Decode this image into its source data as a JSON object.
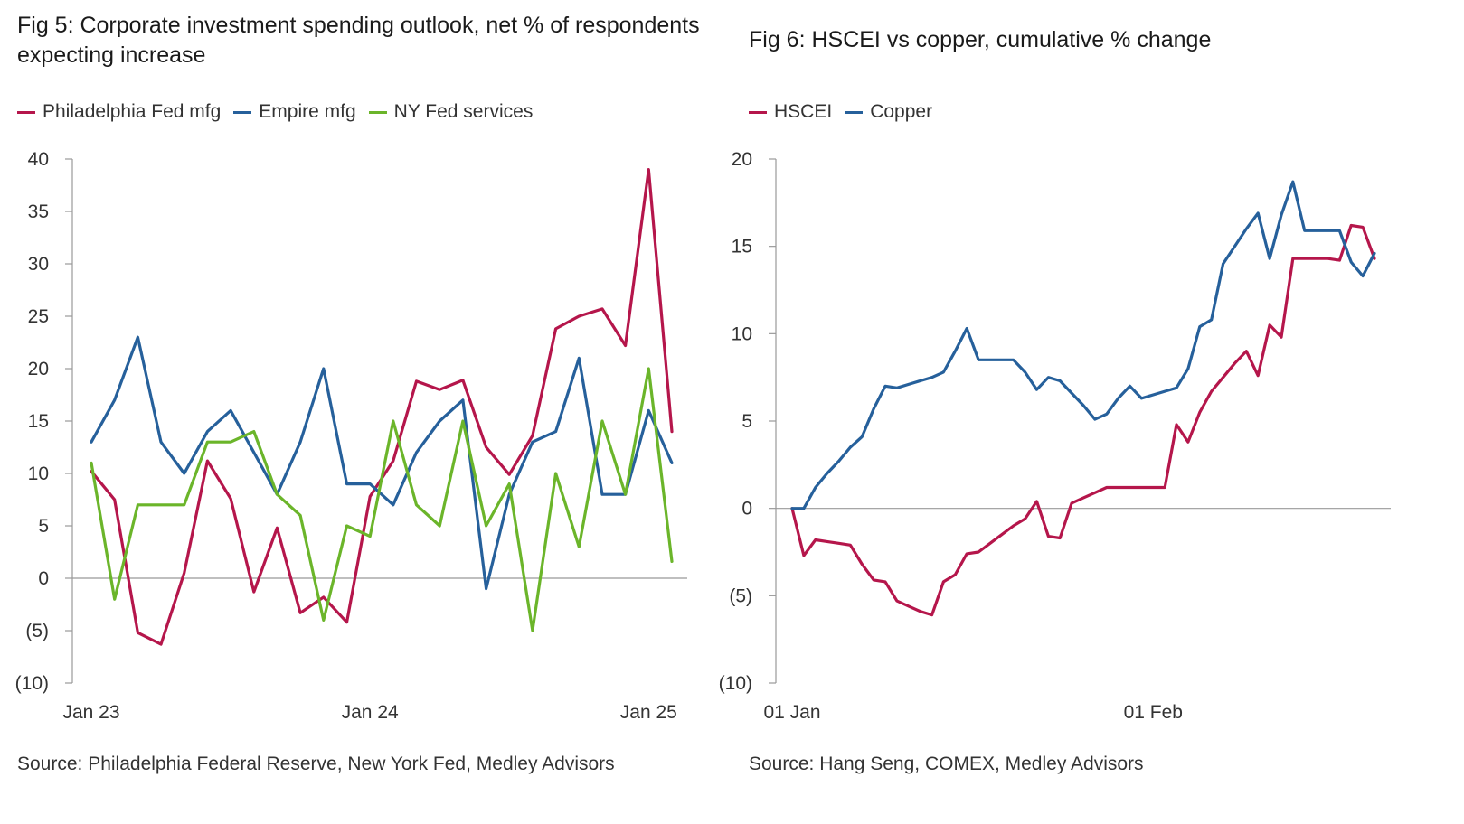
{
  "chart_data": [
    {
      "type": "line",
      "title": "Fig 5: Corporate investment spending outlook, net % of respondents expecting increase",
      "source": "Source: Philadelphia Federal Reserve, New York Fed, Medley Advisors",
      "xlabel": "",
      "ylabel": "",
      "ylim": [
        -10,
        40
      ],
      "yticks": [
        -10,
        -5,
        0,
        5,
        10,
        15,
        20,
        25,
        30,
        35,
        40
      ],
      "ytick_labels": [
        "(10)",
        "(5)",
        "0",
        "5",
        "10",
        "15",
        "20",
        "25",
        "30",
        "35",
        "40"
      ],
      "xlim": [
        0,
        25
      ],
      "xticks": [
        0,
        12,
        24
      ],
      "xtick_labels": [
        "Jan 23",
        "Jan 24",
        "Jan 25"
      ],
      "x": [
        0,
        1,
        2,
        3,
        4,
        5,
        6,
        7,
        8,
        9,
        10,
        11,
        12,
        13,
        14,
        15,
        16,
        17,
        18,
        19,
        20,
        21,
        22,
        23,
        24,
        25
      ],
      "series": [
        {
          "name": "Philadelphia Fed mfg",
          "color": "#b5164b",
          "values": [
            10.2,
            7.5,
            -5.2,
            -6.3,
            0.5,
            11.2,
            7.6,
            -1.3,
            4.8,
            -3.3,
            -1.8,
            -4.2,
            7.8,
            11.2,
            18.8,
            18,
            18.9,
            12.5,
            9.9,
            13.6,
            23.8,
            25,
            25.7,
            22.2,
            39,
            14
          ]
        },
        {
          "name": "Empire mfg",
          "color": "#26609b",
          "values": [
            13,
            17,
            23,
            13,
            10,
            14,
            16,
            12,
            8,
            13,
            20,
            9,
            9,
            7,
            12,
            15,
            17,
            -1,
            8,
            13,
            14,
            21,
            8,
            8,
            16,
            11
          ]
        },
        {
          "name": "NY Fed services",
          "color": "#6bb52a",
          "values": [
            11,
            -2,
            7,
            7,
            7,
            13,
            13,
            14,
            8,
            6,
            -4,
            5,
            4,
            15,
            7,
            5,
            15,
            5,
            9,
            -5,
            10,
            3,
            15,
            8,
            20,
            1.6
          ]
        }
      ]
    },
    {
      "type": "line",
      "title": "Fig 6: HSCEI vs copper, cumulative % change",
      "source": "Source: Hang Seng, COMEX, Medley Advisors",
      "xlabel": "",
      "ylabel": "",
      "ylim": [
        -10,
        20
      ],
      "yticks": [
        -10,
        -5,
        0,
        5,
        10,
        15,
        20
      ],
      "ytick_labels": [
        "(10)",
        "(5)",
        "0",
        "5",
        "10",
        "15",
        "20"
      ],
      "xlim": [
        0,
        50
      ],
      "xticks": [
        0,
        31
      ],
      "xtick_labels": [
        "01 Jan",
        "01 Feb"
      ],
      "x": [
        0,
        1,
        2,
        3,
        4,
        5,
        6,
        7,
        8,
        9,
        10,
        11,
        12,
        13,
        14,
        15,
        16,
        17,
        18,
        19,
        20,
        21,
        22,
        23,
        24,
        25,
        26,
        27,
        28,
        29,
        30,
        31,
        32,
        33,
        34,
        35,
        36,
        37,
        38,
        39,
        40,
        41,
        42,
        43,
        44,
        45,
        46,
        47,
        48,
        49,
        50
      ],
      "series": [
        {
          "name": "HSCEI",
          "color": "#b5164b",
          "values": [
            0,
            -2.7,
            -1.8,
            -1.9,
            -2.0,
            -2.1,
            -3.2,
            -4.1,
            -4.2,
            -5.3,
            -5.6,
            -5.9,
            -6.1,
            -4.2,
            -3.8,
            -2.6,
            -2.5,
            -2.0,
            -1.5,
            -1.0,
            -0.6,
            0.4,
            -1.6,
            -1.7,
            0.3,
            0.6,
            0.9,
            1.2,
            1.2,
            1.2,
            1.2,
            1.2,
            1.2,
            4.8,
            3.8,
            5.5,
            6.7,
            7.5,
            8.3,
            9.0,
            7.6,
            10.5,
            9.8,
            14.3,
            14.3,
            14.3,
            14.3,
            14.2,
            16.2,
            16.1,
            14.3
          ]
        },
        {
          "name": "Copper",
          "color": "#26609b",
          "values": [
            0,
            0,
            1.2,
            2.0,
            2.7,
            3.5,
            4.1,
            5.7,
            7.0,
            6.9,
            7.1,
            7.3,
            7.5,
            7.8,
            9.0,
            10.3,
            8.5,
            8.5,
            8.5,
            8.5,
            7.8,
            6.8,
            7.5,
            7.3,
            6.6,
            5.9,
            5.1,
            5.4,
            6.3,
            7.0,
            6.3,
            6.5,
            6.7,
            6.9,
            8.0,
            10.4,
            10.8,
            14.0,
            15.0,
            16.0,
            16.9,
            14.3,
            16.8,
            18.7,
            15.9,
            15.9,
            15.9,
            15.9,
            14.1,
            13.3,
            14.6
          ]
        }
      ]
    }
  ]
}
